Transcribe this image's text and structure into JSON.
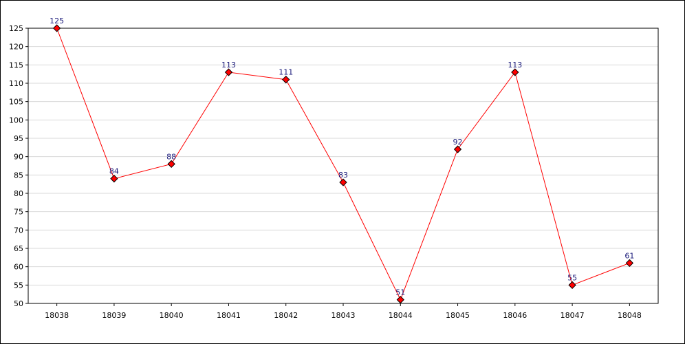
{
  "chart_data": {
    "type": "line",
    "categories": [
      "18038",
      "18039",
      "18040",
      "18041",
      "18042",
      "18043",
      "18044",
      "18045",
      "18046",
      "18047",
      "18048"
    ],
    "series": [
      {
        "values": [
          125,
          84,
          88,
          113,
          111,
          83,
          51,
          92,
          113,
          55,
          61
        ],
        "color": "#ff0000",
        "marker_color": "#ff0000"
      }
    ],
    "y_ticks": [
      "50",
      "55",
      "60",
      "65",
      "70",
      "75",
      "80",
      "85",
      "90",
      "95",
      "100",
      "105",
      "110",
      "115",
      "120",
      "125"
    ],
    "ylim": [
      50,
      125
    ],
    "title": "",
    "xlabel": "",
    "ylabel": "",
    "grid": true,
    "legend": "none",
    "data_label_color": "#1a1a7a",
    "grid_color": "#d9d9d9"
  }
}
